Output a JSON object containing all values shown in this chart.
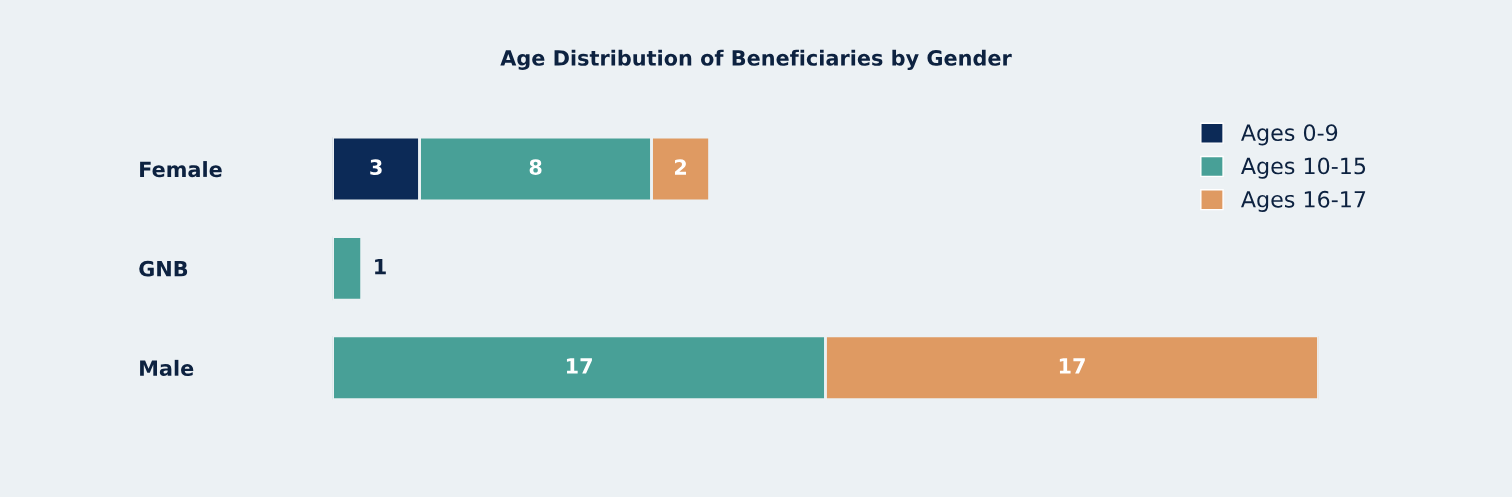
{
  "chart_data": {
    "type": "bar",
    "title": "Age Distribution of Beneficiaries by Gender",
    "orientation": "horizontal",
    "stacked": true,
    "data_labels": true,
    "tick_labels": "y",
    "grid": false,
    "legend": "top right",
    "categories": [
      "Female",
      "GNB",
      "Male"
    ],
    "series": [
      {
        "name": "Ages 0-9",
        "color": "#0c2a57",
        "values": [
          3,
          null,
          null
        ]
      },
      {
        "name": "Ages 10-15",
        "color": "#48a097",
        "values": [
          8,
          1,
          17
        ]
      },
      {
        "name": "Ages 16-17",
        "color": "#df9a62",
        "values": [
          2,
          null,
          17
        ]
      }
    ]
  }
}
